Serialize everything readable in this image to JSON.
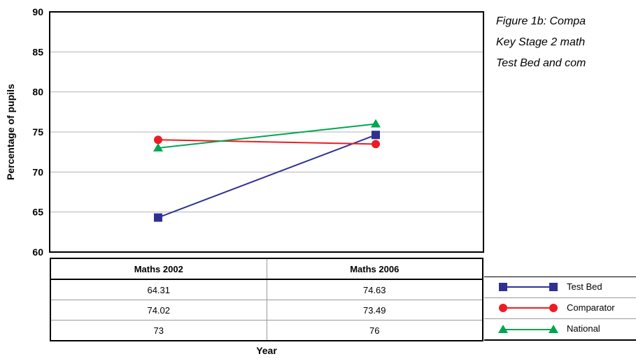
{
  "caption": {
    "line1": "Figure 1b: Compa",
    "line2": "Key Stage 2 math",
    "line3": "Test Bed and com"
  },
  "chart_data": {
    "type": "line",
    "ylabel": "Percentage of pupils",
    "xlabel": "Year",
    "ylim": [
      60,
      90
    ],
    "yticks": [
      "90",
      "85",
      "80",
      "75",
      "70",
      "65",
      "60"
    ],
    "categories": [
      "Maths 2002",
      "Maths 2006"
    ],
    "grid": true,
    "legend_placement": "bottom-right",
    "series": [
      {
        "name": "Test Bed",
        "values": [
          64.31,
          74.63
        ],
        "table_values": [
          "64.31",
          "74.63"
        ],
        "color": "#2e3192",
        "marker": "square"
      },
      {
        "name": "Comparator",
        "values": [
          74.02,
          73.49
        ],
        "table_values": [
          "74.02",
          "73.49"
        ],
        "color": "#ed1c24",
        "marker": "circle"
      },
      {
        "name": "National",
        "values": [
          73,
          76
        ],
        "table_values": [
          "73",
          "76"
        ],
        "color": "#00a651",
        "marker": "triangle"
      }
    ]
  }
}
